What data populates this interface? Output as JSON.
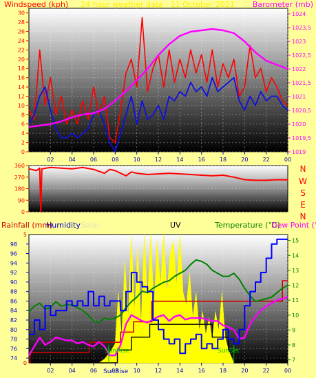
{
  "header_top": {
    "left": "Windspeed (kph)",
    "center": "24 hour weather data - 11 October 2021",
    "right": "Barometer (mb)"
  },
  "header_bottom": {
    "rainfall": "Rainfall (mm)",
    "humidity": "Humidity",
    "solar": "Solar",
    "uv": "UV",
    "temperature": "Temperature (°C)",
    "dewpoint": "Dew Point (°C)"
  },
  "compass": [
    "N",
    "W",
    "S",
    "E",
    "N"
  ],
  "markers": {
    "sunrise": "SunRise",
    "sunset": "SunSet"
  },
  "colors": {
    "background": "#ffff99",
    "wind": "#ff0000",
    "gust": "#1010e0",
    "barometer": "#ff00ff",
    "direction": "#ff0000",
    "humidity": "#0000ff",
    "temperature": "#008000",
    "dewpoint": "#ff00ff",
    "rainfall": "#cc0000",
    "solar": "#ffff00",
    "uv": "#000000",
    "sunmarker": "#00cc00"
  },
  "chart_data": [
    {
      "type": "line",
      "name": "wind-barometer",
      "x_ticks": [
        "02",
        "04",
        "06",
        "08",
        "10",
        "12",
        "14",
        "16",
        "18",
        "20",
        "22",
        "00"
      ],
      "xlim": [
        0,
        24
      ],
      "ylim_left": [
        0,
        31
      ],
      "ylim_right": [
        1019,
        1024.2
      ],
      "yticks_left": [
        "0",
        "2",
        "4",
        "6",
        "8",
        "10",
        "12",
        "14",
        "16",
        "18",
        "20",
        "22",
        "24",
        "26",
        "28",
        "30"
      ],
      "yticks_right": [
        "1019",
        "1019,5",
        "1020",
        "1020,5",
        "1021",
        "1021,5",
        "1022",
        "1022,5",
        "1023",
        "1023,5",
        "1024"
      ],
      "series": [
        {
          "name": "Windspeed",
          "axis": "left",
          "x": [
            0,
            0.5,
            1,
            1.5,
            2,
            2.5,
            3,
            3.5,
            4,
            4.5,
            5,
            5.5,
            6,
            6.5,
            7,
            7.5,
            8,
            8.5,
            9,
            9.5,
            10,
            10.5,
            11,
            11.5,
            12,
            12.5,
            13,
            13.5,
            14,
            14.5,
            15,
            15.5,
            16,
            16.5,
            17,
            17.5,
            18,
            18.5,
            19,
            19.5,
            20,
            20.5,
            21,
            21.5,
            22,
            22.5,
            23,
            23.5,
            24
          ],
          "values": [
            9,
            7,
            22,
            10,
            16,
            8,
            12,
            6,
            9,
            6,
            11,
            7,
            14,
            8,
            12,
            3,
            2,
            9,
            17,
            20,
            14,
            29,
            13,
            18,
            21,
            14,
            22,
            15,
            20,
            16,
            22,
            17,
            21,
            15,
            22,
            14,
            19,
            16,
            20,
            12,
            14,
            23,
            16,
            18,
            13,
            16,
            14,
            11,
            10
          ]
        },
        {
          "name": "Gust",
          "axis": "left",
          "x": [
            0,
            0.5,
            1,
            1.5,
            2,
            2.5,
            3,
            3.5,
            4,
            4.5,
            5,
            5.5,
            6,
            6.5,
            7,
            7.5,
            8,
            8.5,
            9,
            9.5,
            10,
            10.5,
            11,
            11.5,
            12,
            12.5,
            13,
            13.5,
            14,
            14.5,
            15,
            15.5,
            16,
            16.5,
            17,
            17.5,
            18,
            18.5,
            19,
            19.5,
            20,
            20.5,
            21,
            21.5,
            22,
            22.5,
            23,
            23.5,
            24
          ],
          "values": [
            6,
            8,
            12,
            14,
            9,
            5,
            3,
            3,
            4,
            3,
            4,
            5,
            8,
            9,
            6,
            2,
            0,
            4,
            8,
            12,
            6,
            11,
            7,
            8,
            10,
            7,
            12,
            11,
            13,
            12,
            15,
            13,
            14,
            12,
            16,
            13,
            14,
            15,
            16,
            11,
            9,
            12,
            10,
            13,
            11,
            12,
            12,
            10,
            9
          ]
        },
        {
          "name": "Barometer",
          "axis": "right",
          "x": [
            0,
            1,
            2,
            3,
            4,
            5,
            6,
            7,
            8,
            9,
            10,
            11,
            12,
            13,
            14,
            15,
            16,
            17,
            18,
            19,
            20,
            21,
            22,
            23,
            24
          ],
          "values": [
            1019.9,
            1019.95,
            1020.0,
            1020.1,
            1020.25,
            1020.35,
            1020.4,
            1020.55,
            1020.85,
            1021.2,
            1021.6,
            1022.0,
            1022.5,
            1022.9,
            1023.2,
            1023.35,
            1023.4,
            1023.45,
            1023.4,
            1023.3,
            1023.0,
            1022.6,
            1022.3,
            1022.15,
            1022.0
          ]
        }
      ]
    },
    {
      "type": "line",
      "name": "wind-direction",
      "x_ticks": [],
      "xlim": [
        0,
        24
      ],
      "ylim": [
        0,
        360
      ],
      "yticks": [
        "0",
        "90",
        "180",
        "270",
        "360"
      ],
      "series": [
        {
          "name": "Direction",
          "x": [
            0,
            0.7,
            1,
            1.1,
            1.2,
            2,
            3,
            4,
            5,
            6,
            7,
            7.5,
            8,
            9,
            9.5,
            10,
            11,
            12,
            13,
            14,
            15,
            16,
            17,
            18,
            19,
            20,
            21,
            22,
            23,
            24
          ],
          "values": [
            335,
            320,
            340,
            0,
            335,
            345,
            340,
            335,
            345,
            330,
            300,
            330,
            320,
            280,
            310,
            300,
            290,
            295,
            300,
            295,
            290,
            285,
            280,
            285,
            270,
            250,
            245,
            245,
            250,
            248
          ]
        }
      ]
    },
    {
      "type": "line",
      "name": "rain-humidity-temperature",
      "x_ticks": [
        "02",
        "04",
        "06",
        "08",
        "10",
        "12",
        "14",
        "16",
        "18",
        "20",
        "22",
        "00"
      ],
      "xlim": [
        0,
        24
      ],
      "ylim_humidity": [
        73,
        100
      ],
      "ylim_temperature": [
        6.8,
        15.4
      ],
      "ylim_rain": [
        0,
        5
      ],
      "yticks_humidity": [
        "74",
        "76",
        "78",
        "80",
        "82",
        "84",
        "86",
        "88",
        "90",
        "92",
        "94",
        "96",
        "98"
      ],
      "yticks_temperature": [
        "7",
        "8",
        "9",
        "10",
        "11",
        "12",
        "13",
        "14",
        "15"
      ],
      "yticks_rain": [
        "0",
        "5"
      ],
      "series": [
        {
          "name": "Humidity",
          "x": [
            0,
            0.5,
            1,
            1.5,
            2,
            2.5,
            3,
            3.5,
            4,
            4.5,
            5,
            5.5,
            6,
            6.5,
            7,
            7.5,
            8,
            8.5,
            9,
            9.5,
            10,
            10.5,
            11,
            11.5,
            12,
            12.5,
            13,
            13.5,
            14,
            14.5,
            15,
            15.5,
            16,
            16.5,
            17,
            17.5,
            18,
            18.5,
            19,
            19.5,
            20,
            20.5,
            21,
            21.5,
            22,
            22.5,
            23,
            23.5,
            24
          ],
          "values": [
            79,
            82,
            80,
            85,
            83,
            84,
            84,
            86,
            85,
            86,
            85,
            88,
            85,
            87,
            85,
            86,
            86,
            84,
            88,
            92,
            90,
            89,
            88,
            82,
            80,
            78,
            77,
            78,
            75,
            77,
            78,
            79,
            76,
            77,
            76,
            78,
            80,
            78,
            77,
            80,
            85,
            88,
            90,
            92,
            95,
            98,
            99,
            99,
            99
          ]
        },
        {
          "name": "Temperature",
          "x": [
            0,
            0.5,
            1,
            1.5,
            2,
            2.5,
            3,
            3.5,
            4,
            4.5,
            5,
            5.5,
            6,
            6.5,
            7,
            7.5,
            8,
            8.5,
            9,
            9.5,
            10,
            10.5,
            11,
            11.5,
            12,
            12.5,
            13,
            13.5,
            14,
            14.5,
            15,
            15.5,
            16,
            16.5,
            17,
            17.5,
            18,
            18.5,
            19,
            19.5,
            20,
            20.5,
            21,
            21.5,
            22,
            22.5,
            23,
            23.5,
            24
          ],
          "values": [
            10.2,
            10.6,
            10.8,
            10.4,
            10.5,
            10.9,
            10.6,
            10.7,
            10.7,
            10.5,
            10.3,
            10.0,
            9.6,
            9.5,
            9.8,
            9.7,
            9.8,
            10.0,
            10.5,
            10.9,
            11.2,
            11.6,
            11.5,
            11.8,
            12.0,
            12.2,
            12.3,
            12.6,
            12.8,
            13.0,
            13.4,
            13.7,
            13.6,
            13.4,
            13.0,
            12.8,
            12.6,
            12.6,
            12.8,
            12.4,
            11.8,
            11.3,
            10.9,
            11.0,
            11.1,
            11.2,
            11.5,
            11.8,
            12.0
          ]
        },
        {
          "name": "Dew Point",
          "x": [
            0,
            0.5,
            1,
            1.5,
            2,
            2.5,
            3,
            3.5,
            4,
            4.5,
            5,
            5.5,
            6,
            6.5,
            7,
            7.5,
            8,
            8.5,
            9,
            9.5,
            10,
            10.5,
            11,
            11.5,
            12,
            12.5,
            13,
            13.5,
            14,
            14.5,
            15,
            15.5,
            16,
            16.5,
            17,
            17.5,
            18,
            18.5,
            19,
            19.5,
            20,
            20.5,
            21,
            21.5,
            22,
            22.5,
            23,
            23.5,
            24
          ],
          "values": [
            7.3,
            7.9,
            8.5,
            8.0,
            8.2,
            8.5,
            8.4,
            8.3,
            8.3,
            8.1,
            8.2,
            8.0,
            7.9,
            8.2,
            7.9,
            7.3,
            7.3,
            8.0,
            9.4,
            10.0,
            9.8,
            9.6,
            9.5,
            9.7,
            9.9,
            10.0,
            9.6,
            9.9,
            10.0,
            9.7,
            9.8,
            9.8,
            9.8,
            9.7,
            9.6,
            9.6,
            9.3,
            9.2,
            9.0,
            8.4,
            8.5,
            9.4,
            9.9,
            10.3,
            10.6,
            10.8,
            11.0,
            11.1,
            11.2
          ]
        },
        {
          "name": "Rainfall",
          "x": [
            0,
            0.1,
            3.2,
            4.8,
            5.6,
            8.0,
            8.5,
            9.1,
            9.7,
            10.2,
            11.0,
            11.4,
            16.0,
            18.3,
            19.1,
            23.0,
            23.5,
            24
          ],
          "values": [
            0,
            0.4,
            0.4,
            0.4,
            0.8,
            0.8,
            1.2,
            1.2,
            1.6,
            1.6,
            1.6,
            2.4,
            2.4,
            2.4,
            2.4,
            2.4,
            3.2,
            3.2
          ]
        },
        {
          "name": "Solar",
          "x": [
            0,
            6.5,
            7,
            7.5,
            8,
            8.3,
            8.6,
            8.9,
            9.2,
            9.5,
            9.8,
            10.1,
            10.4,
            10.7,
            11.0,
            11.3,
            11.6,
            11.9,
            12.2,
            12.5,
            12.8,
            13.1,
            13.4,
            13.7,
            14.0,
            14.3,
            14.6,
            14.9,
            15.2,
            15.5,
            15.8,
            16.1,
            16.4,
            16.7,
            17.0,
            17.3,
            17.6,
            17.9,
            18.2,
            18.5,
            19,
            24
          ],
          "values": [
            0,
            0,
            3,
            8,
            15,
            55,
            20,
            80,
            35,
            100,
            40,
            90,
            30,
            100,
            50,
            100,
            45,
            95,
            60,
            100,
            55,
            85,
            95,
            60,
            100,
            55,
            45,
            70,
            35,
            55,
            25,
            40,
            22,
            35,
            18,
            40,
            25,
            55,
            20,
            10,
            0,
            0
          ]
        },
        {
          "name": "UV",
          "x": [
            0,
            7.5,
            8.2,
            9.0,
            9.5,
            10.5,
            11.2,
            12.0,
            16.0,
            17.0,
            18.0,
            18.5,
            19,
            24
          ],
          "values": [
            0,
            0,
            1,
            1,
            2,
            2,
            3,
            3,
            3,
            2,
            2,
            1,
            0,
            0
          ]
        }
      ]
    }
  ]
}
